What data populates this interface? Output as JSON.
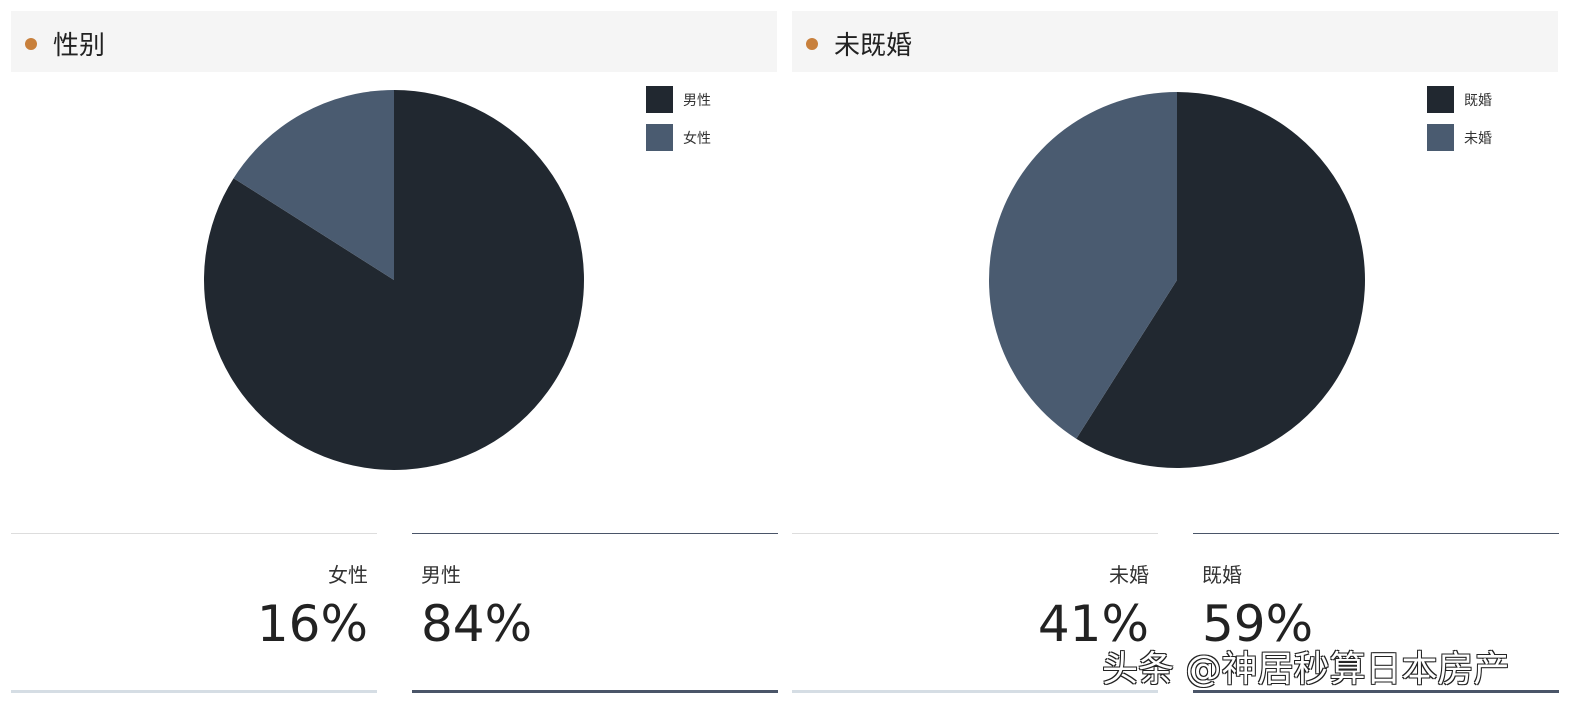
{
  "chart_data": [
    {
      "type": "pie",
      "title": "性别",
      "categories": [
        "男性",
        "女性"
      ],
      "values": [
        84,
        16
      ],
      "colors": [
        "#212830",
        "#4a5b70"
      ],
      "legend": "top-right"
    },
    {
      "type": "pie",
      "title": "未既婚",
      "categories": [
        "既婚",
        "未婚"
      ],
      "values": [
        59,
        41
      ],
      "colors": [
        "#212830",
        "#4a5b70"
      ],
      "legend": "top-right"
    }
  ],
  "stats": [
    [
      {
        "label": "女性",
        "value": "16%"
      },
      {
        "label": "男性",
        "value": "84%"
      }
    ],
    [
      {
        "label": "未婚",
        "value": "41%"
      },
      {
        "label": "既婚",
        "value": "59%"
      }
    ]
  ],
  "watermark": "头条 @神居秒算日本房产",
  "accent": "#c8803c"
}
